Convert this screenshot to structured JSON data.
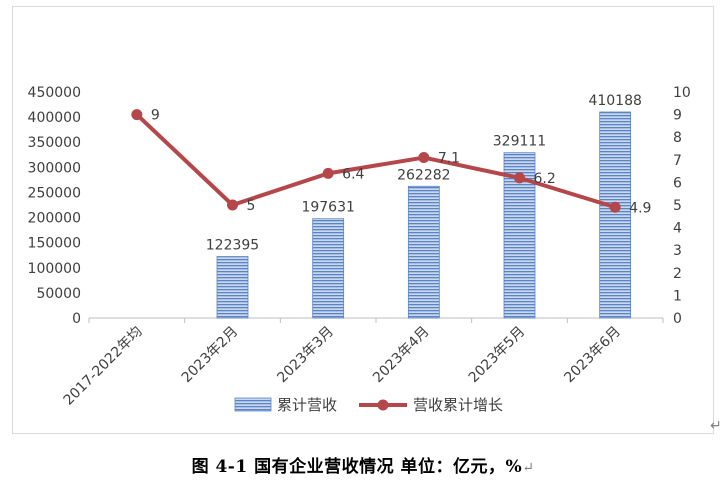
{
  "caption": "图 4-1  国有企业营收情况  单位：亿元，%",
  "caption_mark": "↵",
  "return_mark": "↵",
  "colors": {
    "bar": "#5b84c4",
    "bar_stripe": "#c9d8ef",
    "line": "#b5464a",
    "axis_text": "#404040",
    "axis_line": "#bfbfbf"
  },
  "chart_data": {
    "type": "bar+line",
    "categories": [
      "2017-2022年均",
      "2023年2月",
      "2023年3月",
      "2023年4月",
      "2023年5月",
      "2023年6月"
    ],
    "series": [
      {
        "name": "累计营收",
        "type": "bar",
        "axis": "left",
        "values": [
          null,
          122395,
          197631,
          262282,
          329111,
          410188
        ],
        "labels": [
          "",
          "122395",
          "197631",
          "262282",
          "329111",
          "410188"
        ]
      },
      {
        "name": "营收累计增长",
        "type": "line",
        "axis": "right",
        "values": [
          9,
          5,
          6.4,
          7.1,
          6.2,
          4.9
        ],
        "labels": [
          "9",
          "5",
          "6.4",
          "7.1",
          "6.2",
          "4.9"
        ]
      }
    ],
    "y_left": {
      "lim": [
        0,
        450000
      ],
      "ticks": [
        "0",
        "50000",
        "100000",
        "150000",
        "200000",
        "250000",
        "300000",
        "350000",
        "400000",
        "450000"
      ]
    },
    "y_right": {
      "lim": [
        0,
        10
      ],
      "ticks": [
        "0",
        "1",
        "2",
        "3",
        "4",
        "5",
        "6",
        "7",
        "8",
        "9",
        "10"
      ]
    },
    "grid": false,
    "legend_position": "bottom"
  }
}
